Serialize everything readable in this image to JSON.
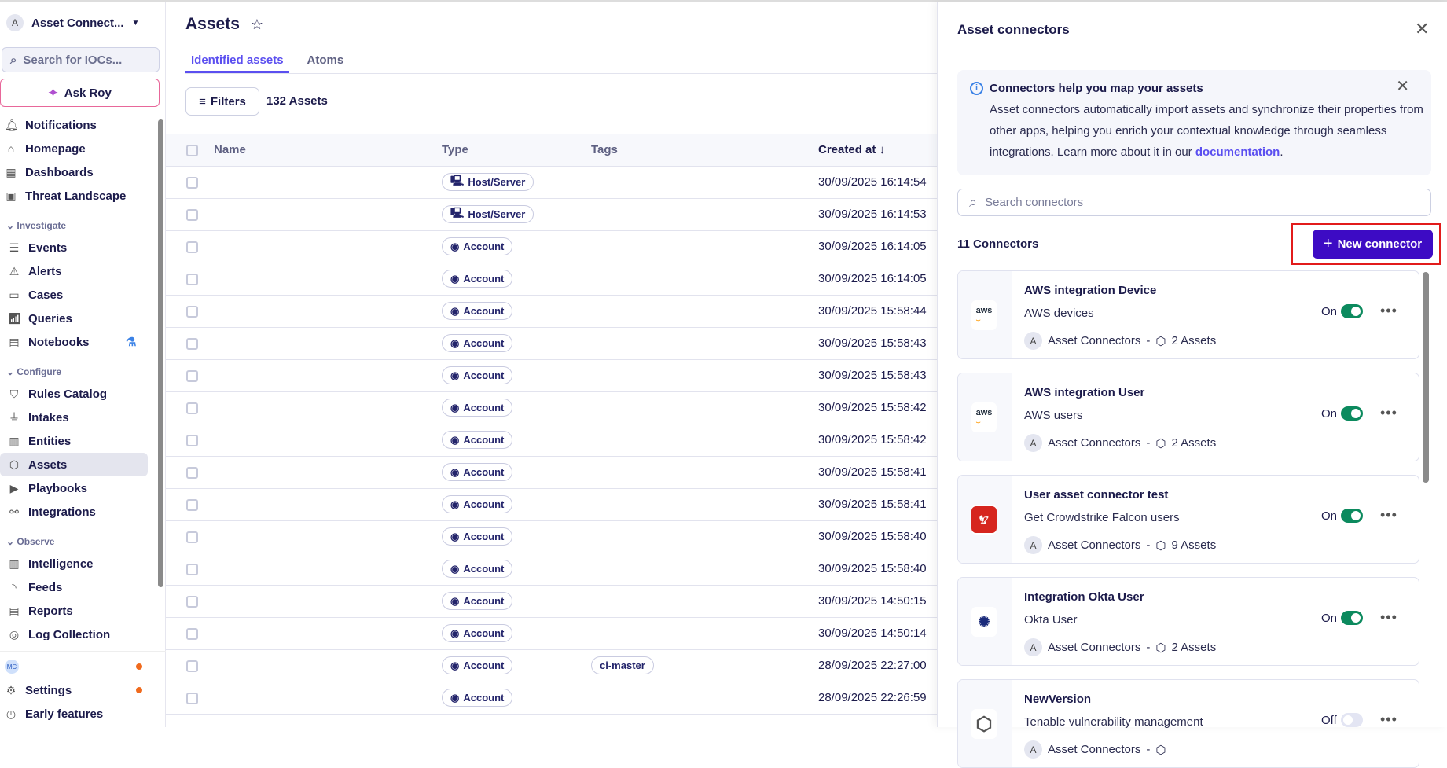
{
  "sidebar": {
    "workspace": "Asset Connect...",
    "workspace_initial": "A",
    "search_placeholder": "Search for IOCs...",
    "ask_roy": "Ask Roy",
    "top_items": [
      {
        "label": "Notifications",
        "icon": "bell-icon"
      },
      {
        "label": "Homepage",
        "icon": "home-icon"
      },
      {
        "label": "Dashboards",
        "icon": "dashboard-icon"
      },
      {
        "label": "Threat Landscape",
        "icon": "image-icon"
      }
    ],
    "sections": [
      {
        "title": "Investigate",
        "items": [
          {
            "label": "Events",
            "icon": "events-icon"
          },
          {
            "label": "Alerts",
            "icon": "alert-icon"
          },
          {
            "label": "Cases",
            "icon": "cases-icon"
          },
          {
            "label": "Queries",
            "icon": "chart-icon"
          },
          {
            "label": "Notebooks",
            "icon": "notebook-icon"
          }
        ]
      },
      {
        "title": "Configure",
        "items": [
          {
            "label": "Rules Catalog",
            "icon": "shield-icon"
          },
          {
            "label": "Intakes",
            "icon": "plug-icon"
          },
          {
            "label": "Entities",
            "icon": "building-icon"
          },
          {
            "label": "Assets",
            "icon": "cube-icon",
            "active": true
          },
          {
            "label": "Playbooks",
            "icon": "play-icon"
          },
          {
            "label": "Integrations",
            "icon": "integrations-icon"
          }
        ]
      },
      {
        "title": "Observe",
        "items": [
          {
            "label": "Intelligence",
            "icon": "library-icon"
          },
          {
            "label": "Feeds",
            "icon": "rss-icon"
          },
          {
            "label": "Reports",
            "icon": "report-icon"
          },
          {
            "label": "Log Collection",
            "icon": "log-icon"
          }
        ]
      }
    ],
    "user_initials": "MC",
    "settings": "Settings",
    "early_features": "Early features"
  },
  "main": {
    "title": "Assets",
    "tabs": [
      "Identified assets",
      "Atoms"
    ],
    "filters": "Filters",
    "count": "132 Assets",
    "columns": [
      "Name",
      "Type",
      "Tags",
      "Created at"
    ],
    "rows": [
      {
        "name": "",
        "type": "Host/Server",
        "tag": "",
        "created": "30/09/2025 16:14:54"
      },
      {
        "name": "",
        "type": "Host/Server",
        "tag": "",
        "created": "30/09/2025 16:14:53"
      },
      {
        "name": "",
        "type": "Account",
        "tag": "",
        "created": "30/09/2025 16:14:05"
      },
      {
        "name": "",
        "type": "Account",
        "tag": "",
        "created": "30/09/2025 16:14:05"
      },
      {
        "name": "",
        "type": "Account",
        "tag": "",
        "created": "30/09/2025 15:58:44"
      },
      {
        "name": "",
        "type": "Account",
        "tag": "",
        "created": "30/09/2025 15:58:43"
      },
      {
        "name": "",
        "type": "Account",
        "tag": "",
        "created": "30/09/2025 15:58:43"
      },
      {
        "name": "",
        "type": "Account",
        "tag": "",
        "created": "30/09/2025 15:58:42"
      },
      {
        "name": "",
        "type": "Account",
        "tag": "",
        "created": "30/09/2025 15:58:42"
      },
      {
        "name": "",
        "type": "Account",
        "tag": "",
        "created": "30/09/2025 15:58:41"
      },
      {
        "name": "",
        "type": "Account",
        "tag": "",
        "created": "30/09/2025 15:58:41"
      },
      {
        "name": "",
        "type": "Account",
        "tag": "",
        "created": "30/09/2025 15:58:40"
      },
      {
        "name": "",
        "type": "Account",
        "tag": "",
        "created": "30/09/2025 15:58:40"
      },
      {
        "name": "",
        "type": "Account",
        "tag": "",
        "created": "30/09/2025 14:50:15"
      },
      {
        "name": "",
        "type": "Account",
        "tag": "",
        "created": "30/09/2025 14:50:14"
      },
      {
        "name": "",
        "type": "Account",
        "tag": "ci-master",
        "created": "28/09/2025 22:27:00"
      },
      {
        "name": "",
        "type": "Account",
        "tag": "",
        "created": "28/09/2025 22:26:59"
      }
    ]
  },
  "panel": {
    "title": "Asset connectors",
    "info_title": "Connectors help you map your assets",
    "info_text": "Asset connectors automatically import assets and synchronize their properties from other apps, helping you enrich your contextual knowledge through seamless integrations. Learn more about it in our ",
    "info_link": "documentation",
    "info_end": ".",
    "search_placeholder": "Search connectors",
    "count": "11 Connectors",
    "new_connector": "New connector",
    "connectors": [
      {
        "name": "AWS integration Device",
        "desc": "AWS devices",
        "owner": "Asset Connectors",
        "owner_initial": "A",
        "assets": "2 Assets",
        "status": "On",
        "logo": "aws"
      },
      {
        "name": "AWS integration User",
        "desc": "AWS users",
        "owner": "Asset Connectors",
        "owner_initial": "A",
        "assets": "2 Assets",
        "status": "On",
        "logo": "aws"
      },
      {
        "name": "User asset connector test",
        "desc": "Get Crowdstrike Falcon users",
        "owner": "Asset Connectors",
        "owner_initial": "A",
        "assets": "9 Assets",
        "status": "On",
        "logo": "crowdstrike"
      },
      {
        "name": "Integration Okta User",
        "desc": "Okta User",
        "owner": "Asset Connectors",
        "owner_initial": "A",
        "assets": "2 Assets",
        "status": "On",
        "logo": "okta"
      },
      {
        "name": "NewVersion",
        "desc": "Tenable vulnerability management",
        "owner": "Asset Connectors",
        "owner_initial": "A",
        "assets": "",
        "status": "Off",
        "logo": "tenable"
      }
    ]
  },
  "colors": {
    "accent": "#5b4ff0",
    "primary_button": "#3d0bc4",
    "toggle_on": "#0c8a5e",
    "highlight": "#e21b1b"
  }
}
